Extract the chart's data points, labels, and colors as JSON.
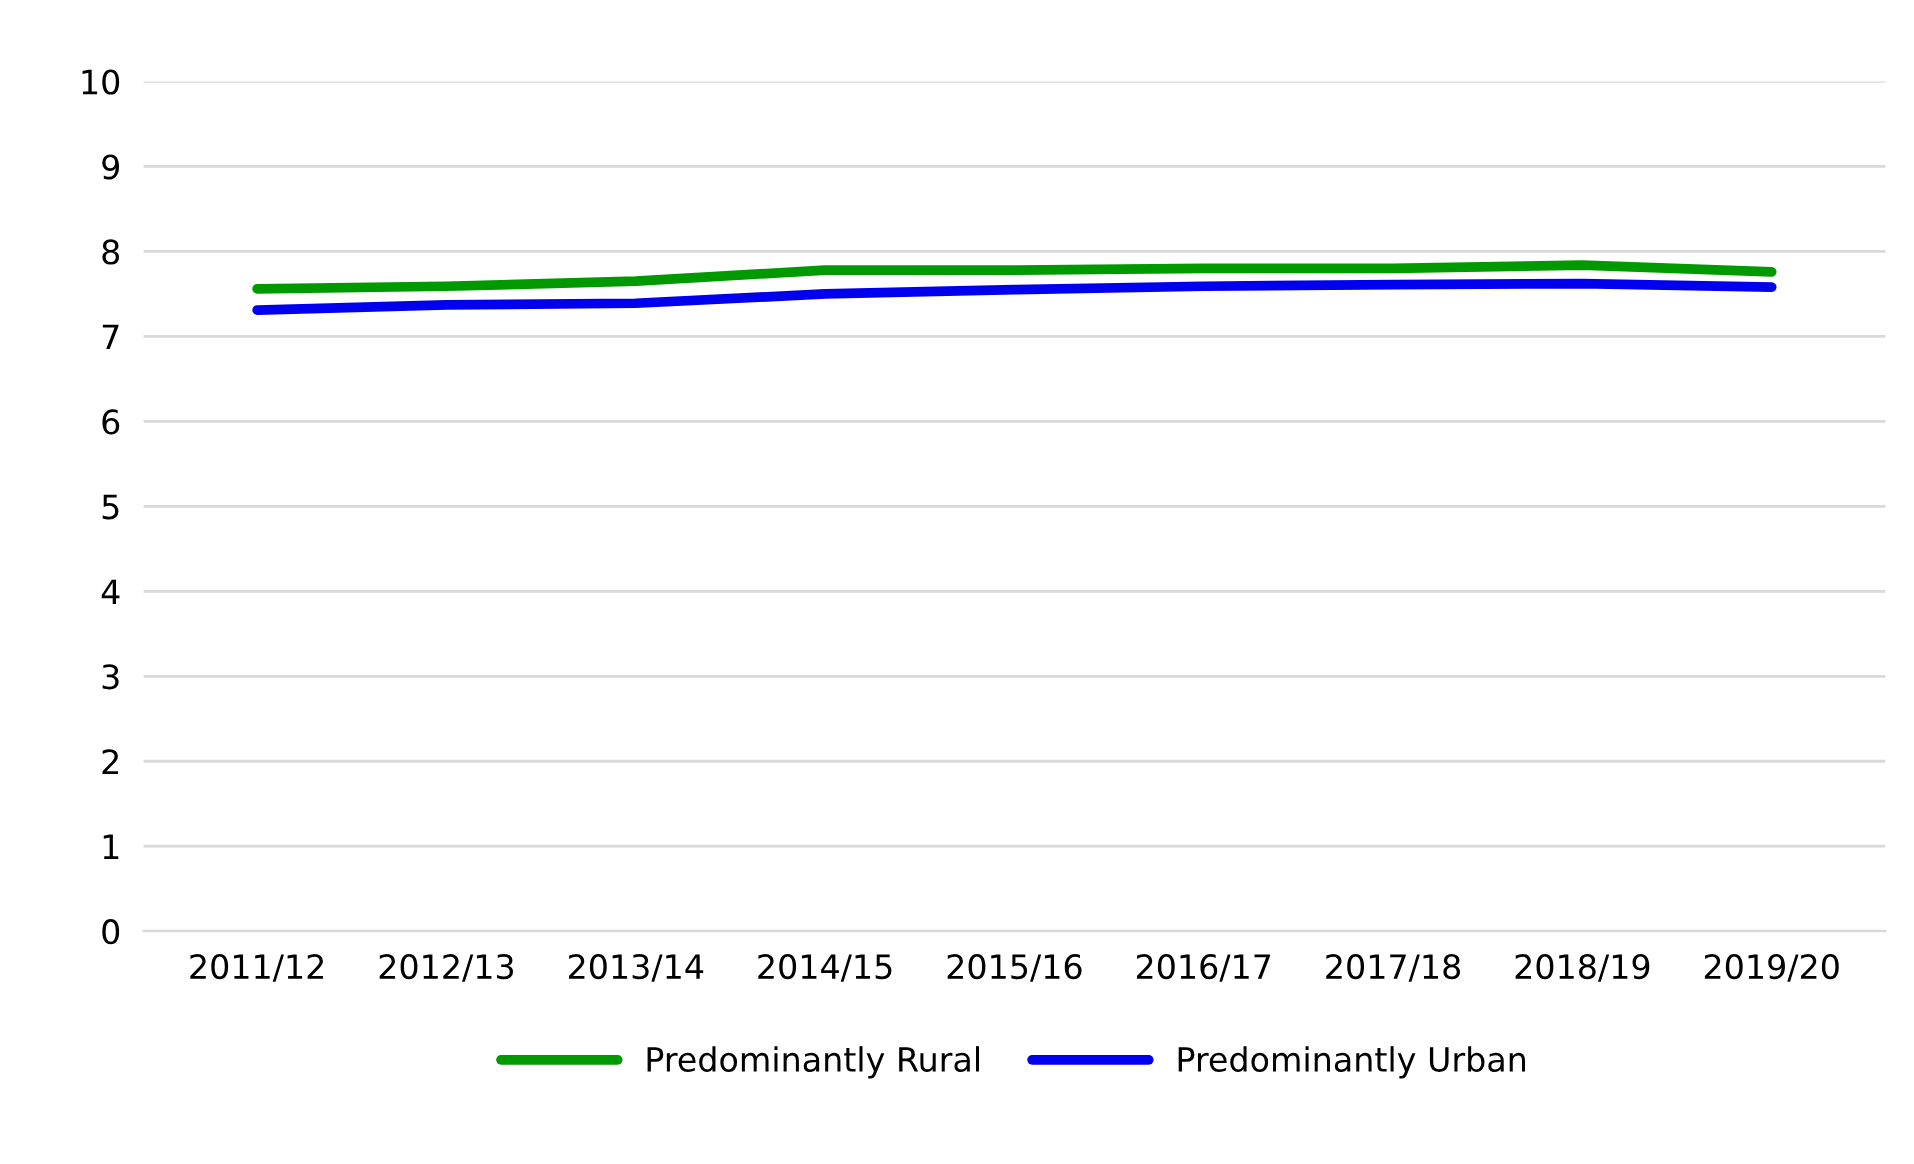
{
  "chart_data": {
    "type": "line",
    "categories": [
      "2011/12",
      "2012/13",
      "2013/14",
      "2014/15",
      "2015/16",
      "2016/17",
      "2017/18",
      "2018/19",
      "2019/20"
    ],
    "series": [
      {
        "name": "Predominantly Rural",
        "color": "#009900",
        "values": [
          7.56,
          7.59,
          7.65,
          7.78,
          7.78,
          7.8,
          7.8,
          7.84,
          7.76
        ]
      },
      {
        "name": "Predominantly Urban",
        "color": "#0000ee",
        "values": [
          7.31,
          7.37,
          7.39,
          7.5,
          7.55,
          7.59,
          7.61,
          7.62,
          7.58
        ]
      }
    ],
    "ylim": [
      0,
      10
    ],
    "yticks": [
      0,
      1,
      2,
      3,
      4,
      5,
      6,
      7,
      8,
      9,
      10
    ],
    "grid": "y",
    "legend": "bottom",
    "marker": "none",
    "line_style": "solid"
  }
}
